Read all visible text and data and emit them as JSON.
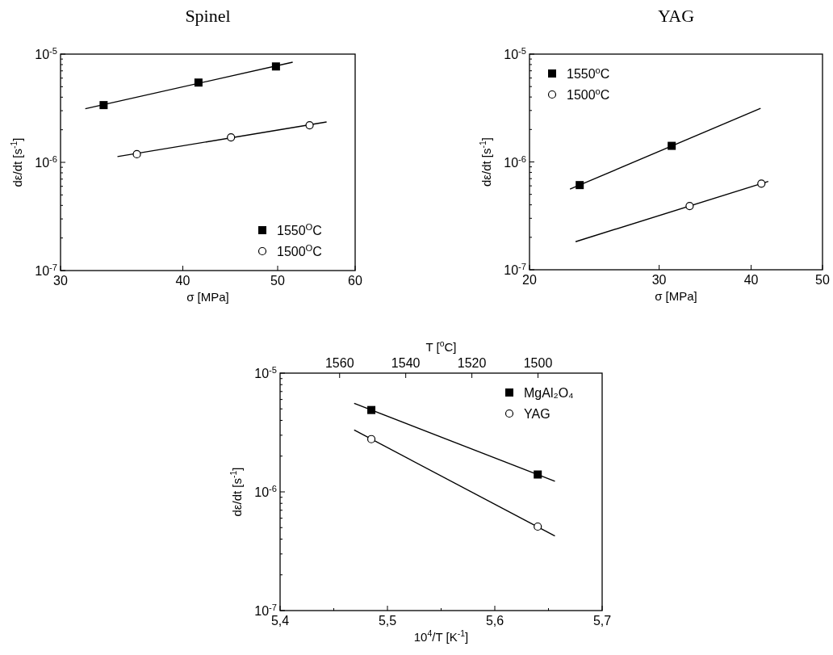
{
  "chart_data": [
    {
      "type": "scatter",
      "title": "Spinel",
      "xlabel": "σ [MPa]",
      "ylabel": "dε/dt [s$^{-1}$]",
      "log": "xy",
      "xlim": [
        30,
        60
      ],
      "xticks": [
        30,
        40,
        50,
        60
      ],
      "ylim": [
        1e-07,
        1e-05
      ],
      "yticks": [
        {
          "value": 1e-07,
          "label": "10$^{-7}$"
        },
        {
          "value": 2e-07,
          "label": null
        },
        {
          "value": 3e-07,
          "label": null
        },
        {
          "value": 4e-07,
          "label": null
        },
        {
          "value": 5e-07,
          "label": null
        },
        {
          "value": 6e-07,
          "label": null
        },
        {
          "value": 7e-07,
          "label": null
        },
        {
          "value": 8e-07,
          "label": null
        },
        {
          "value": 9e-07,
          "label": null
        },
        {
          "value": 1e-06,
          "label": "10$^{-6}$"
        },
        {
          "value": 2e-06,
          "label": null
        },
        {
          "value": 3e-06,
          "label": null
        },
        {
          "value": 4e-06,
          "label": null
        },
        {
          "value": 5e-06,
          "label": null
        },
        {
          "value": 6e-06,
          "label": null
        },
        {
          "value": 7e-06,
          "label": null
        },
        {
          "value": 8e-06,
          "label": null
        },
        {
          "value": 9e-06,
          "label": null
        },
        {
          "value": 1e-05,
          "label": "10$^{-5}$"
        }
      ],
      "legend": "bottom right",
      "series": [
        {
          "name": "1550$^{O}$C",
          "type": "scatter",
          "marker": "square",
          "color": "#000000",
          "x": [
            33.2,
            41.5,
            49.8
          ],
          "values": [
            3.38e-06,
            5.46e-06,
            7.69e-06
          ]
        },
        {
          "name": "1500$^{O}$C",
          "type": "scatter",
          "marker": "circle",
          "color": "#000000",
          "x": [
            35.9,
            44.8,
            53.9
          ],
          "values": [
            1.19e-06,
            1.7e-06,
            2.2e-06
          ]
        },
        {
          "type": "line",
          "marker": "none",
          "color": "#000000",
          "x": [
            31.8,
            51.8
          ],
          "values": [
            3.13e-06,
            8.42e-06
          ]
        },
        {
          "type": "line",
          "marker": "none",
          "color": "#000000",
          "x": [
            34.3,
            56.1
          ],
          "values": [
            1.13e-06,
            2.36e-06
          ]
        }
      ]
    },
    {
      "type": "scatter",
      "title": "YAG",
      "xlabel": "σ [MPa]",
      "ylabel": "dε/dt [s$^{-1}$]",
      "log": "xy",
      "xlim": [
        20,
        50
      ],
      "xticks": [
        20,
        30,
        40,
        50
      ],
      "ylim": [
        1e-07,
        1e-05
      ],
      "yticks": [
        {
          "value": 1e-07,
          "label": "10$^{-7}$"
        },
        {
          "value": 2e-07,
          "label": null
        },
        {
          "value": 3e-07,
          "label": null
        },
        {
          "value": 4e-07,
          "label": null
        },
        {
          "value": 5e-07,
          "label": null
        },
        {
          "value": 6e-07,
          "label": null
        },
        {
          "value": 7e-07,
          "label": null
        },
        {
          "value": 8e-07,
          "label": null
        },
        {
          "value": 9e-07,
          "label": null
        },
        {
          "value": 1e-06,
          "label": "10$^{-6}$"
        },
        {
          "value": 2e-06,
          "label": null
        },
        {
          "value": 3e-06,
          "label": null
        },
        {
          "value": 4e-06,
          "label": null
        },
        {
          "value": 5e-06,
          "label": null
        },
        {
          "value": 6e-06,
          "label": null
        },
        {
          "value": 7e-06,
          "label": null
        },
        {
          "value": 8e-06,
          "label": null
        },
        {
          "value": 9e-06,
          "label": null
        },
        {
          "value": 1e-05,
          "label": "10$^{-5}$"
        }
      ],
      "legend": "top left",
      "series": [
        {
          "name": "1550$^{o}$C",
          "type": "scatter",
          "marker": "square",
          "color": "#000000",
          "x": [
            23.4,
            31.2
          ],
          "values": [
            6.1e-07,
            1.41e-06
          ]
        },
        {
          "name": "1500$^{o}$C",
          "type": "scatter",
          "marker": "circle",
          "color": "#000000",
          "x": [
            33.0,
            41.3
          ],
          "values": [
            3.9e-07,
            6.3e-07
          ]
        },
        {
          "type": "line",
          "marker": "none",
          "color": "#000000",
          "x": [
            22.7,
            41.2
          ],
          "values": [
            5.6e-07,
            3.14e-06
          ]
        },
        {
          "type": "line",
          "marker": "none",
          "color": "#000000",
          "x": [
            23.1,
            42.2
          ],
          "values": [
            1.82e-07,
            6.6e-07
          ]
        }
      ]
    },
    {
      "type": "scatter",
      "xlabel": "10$^{4}$/T [K$^{-1}$]",
      "ylabel": "dε/dt [s$^{-1}$]",
      "x2label": "T [$^{o}$C]",
      "log": "y",
      "xlim": [
        5.4,
        5.7
      ],
      "xticks": [
        {
          "value": 5.4,
          "label": "5,4"
        },
        {
          "value": 5.45,
          "label": null
        },
        {
          "value": 5.5,
          "label": "5,5"
        },
        {
          "value": 5.55,
          "label": null
        },
        {
          "value": 5.6,
          "label": "5,6"
        },
        {
          "value": 5.65,
          "label": null
        },
        {
          "value": 5.7,
          "label": "5,7"
        }
      ],
      "x2lim": [
        1578,
        1480.6
      ],
      "x2ticks": [
        1560,
        1540,
        1520,
        1500
      ],
      "ylim": [
        1e-07,
        1e-05
      ],
      "yticks": [
        {
          "value": 1e-07,
          "label": "10$^{-7}$"
        },
        {
          "value": 2e-07,
          "label": null
        },
        {
          "value": 3e-07,
          "label": null
        },
        {
          "value": 4e-07,
          "label": null
        },
        {
          "value": 5e-07,
          "label": null
        },
        {
          "value": 6e-07,
          "label": null
        },
        {
          "value": 7e-07,
          "label": null
        },
        {
          "value": 8e-07,
          "label": null
        },
        {
          "value": 9e-07,
          "label": null
        },
        {
          "value": 1e-06,
          "label": "10$^{-6}$"
        },
        {
          "value": 2e-06,
          "label": null
        },
        {
          "value": 3e-06,
          "label": null
        },
        {
          "value": 4e-06,
          "label": null
        },
        {
          "value": 5e-06,
          "label": null
        },
        {
          "value": 6e-06,
          "label": null
        },
        {
          "value": 7e-06,
          "label": null
        },
        {
          "value": 8e-06,
          "label": null
        },
        {
          "value": 9e-06,
          "label": null
        },
        {
          "value": 1e-05,
          "label": "10$^{-5}$"
        }
      ],
      "legend": "top right",
      "series": [
        {
          "name": "MgAl₂O₄",
          "type": "scatter",
          "marker": "square",
          "color": "#000000",
          "x": [
            5.485,
            5.64
          ],
          "values": [
            4.89e-06,
            1.4e-06
          ]
        },
        {
          "name": "YAG",
          "type": "scatter",
          "marker": "circle",
          "color": "#000000",
          "x": [
            5.485,
            5.64
          ],
          "values": [
            2.78e-06,
            5.1e-07
          ]
        },
        {
          "type": "line",
          "marker": "none",
          "color": "#000000",
          "x": [
            5.469,
            5.656
          ],
          "values": [
            5.57e-06,
            1.23e-06
          ]
        },
        {
          "type": "line",
          "marker": "none",
          "color": "#000000",
          "x": [
            5.469,
            5.656
          ],
          "values": [
            3.32e-06,
            4.25e-07
          ]
        }
      ]
    }
  ]
}
